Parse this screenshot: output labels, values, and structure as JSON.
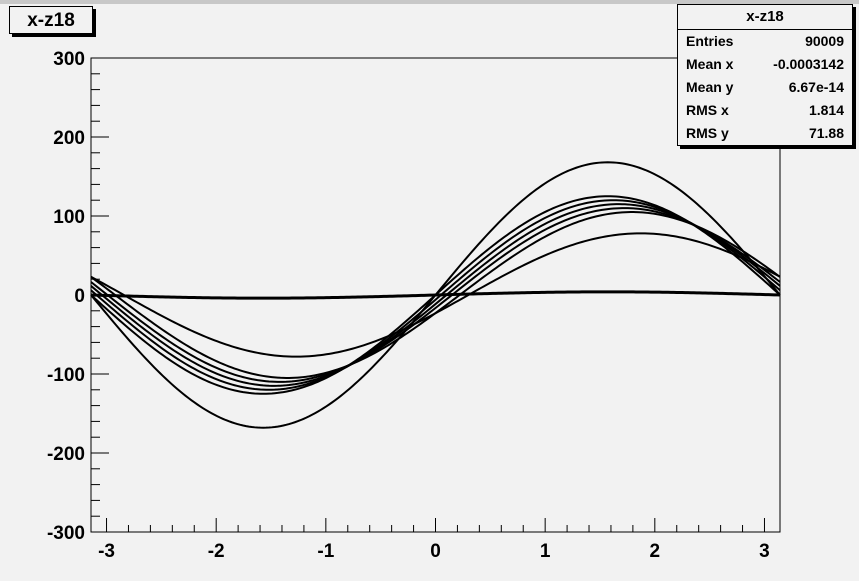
{
  "title": "x-z18",
  "stats": {
    "title": "x-z18",
    "rows": [
      {
        "label": "Entries",
        "value": "90009"
      },
      {
        "label": "Mean x",
        "value": "-0.0003142"
      },
      {
        "label": "Mean y",
        "value": "6.67e-14"
      },
      {
        "label": "RMS x",
        "value": "1.814"
      },
      {
        "label": "RMS y",
        "value": "71.88"
      }
    ]
  },
  "chart_data": {
    "type": "scatter",
    "title": "x-z18",
    "xlabel": "",
    "ylabel": "",
    "xlim": [
      -3.1416,
      3.1416
    ],
    "ylim": [
      -300,
      300
    ],
    "x_ticks": [
      -3,
      -2,
      -1,
      0,
      1,
      2,
      3
    ],
    "y_ticks": [
      -300,
      -200,
      -100,
      0,
      100,
      200,
      300
    ],
    "grid": false,
    "legend": "none",
    "series": [
      {
        "amplitude": 168,
        "phase": 0.0
      },
      {
        "amplitude": 125,
        "phase": 0.0
      },
      {
        "amplitude": 120,
        "phase": 0.05
      },
      {
        "amplitude": 115,
        "phase": 0.1
      },
      {
        "amplitude": 110,
        "phase": 0.15
      },
      {
        "amplitude": 105,
        "phase": 0.22
      },
      {
        "amplitude": 78,
        "phase": 0.3
      },
      {
        "amplitude": 4,
        "phase": 0.0
      }
    ],
    "curve_shape": "y = A * sin(x - phase)",
    "color": "#000000"
  }
}
